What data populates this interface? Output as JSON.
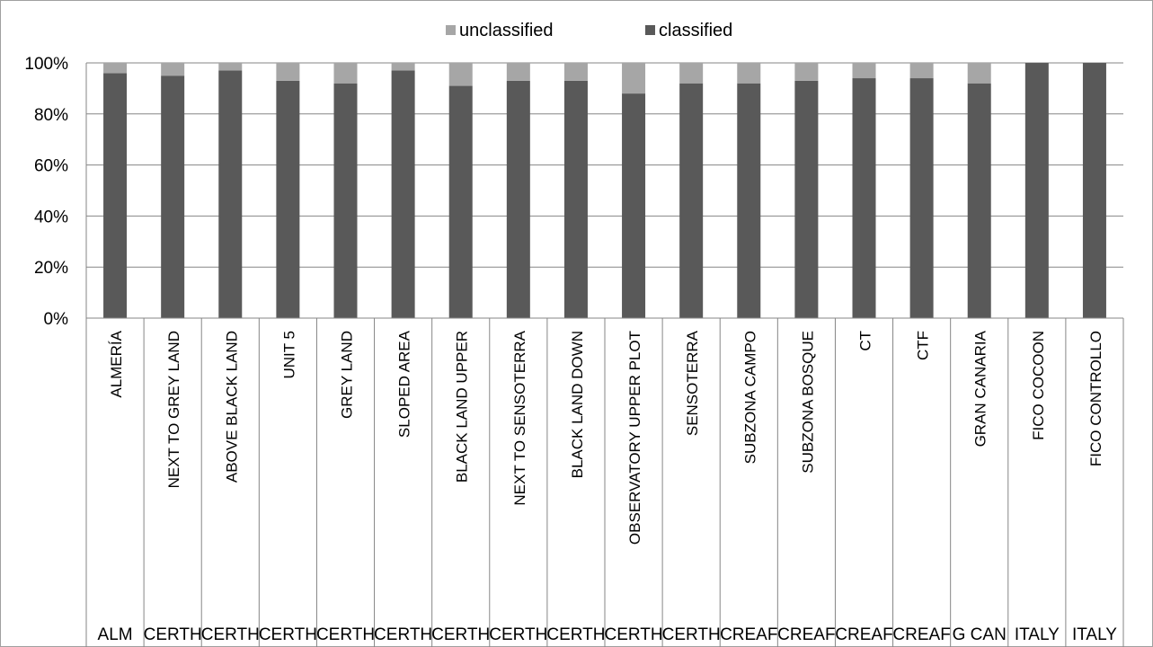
{
  "chart_data": {
    "type": "bar",
    "stacked": true,
    "percent_stacked": true,
    "categories": [
      "ALMERÍA",
      "NEXT TO GREY LAND",
      "ABOVE BLACK LAND",
      "UNIT 5",
      "GREY LAND",
      "SLOPED AREA",
      "BLACK LAND UPPER",
      "NEXT TO SENSOTERRA",
      "BLACK LAND DOWN",
      "OBSERVATORY UPPER PLOT",
      "SENSOTERRA",
      "SUBZONA CAMPO",
      "SUBZONA BOSQUE",
      "CT",
      "CTF",
      "GRAN CANARIA",
      "FICO COCOON",
      "FICO CONTROLLO"
    ],
    "groups": [
      "ALM",
      "CERTH",
      "CERTH",
      "CERTH",
      "CERTH",
      "CERTH",
      "CERTH",
      "CERTH",
      "CERTH",
      "CERTH",
      "CERTH",
      "CREAF",
      "CREAF",
      "CREAF",
      "CREAF",
      "G CAN",
      "ITALY",
      "ITALY"
    ],
    "series": [
      {
        "name": "classified",
        "color": "#595959",
        "values": [
          96,
          95,
          97,
          93,
          92,
          97,
          91,
          93,
          93,
          88,
          92,
          92,
          93,
          94,
          94,
          92,
          100,
          100
        ]
      },
      {
        "name": "unclassified",
        "color": "#a6a6a6",
        "values": [
          4,
          5,
          3,
          7,
          8,
          3,
          9,
          7,
          7,
          12,
          8,
          8,
          7,
          6,
          6,
          8,
          0,
          0
        ]
      }
    ],
    "legend_order": [
      "unclassified",
      "classified"
    ],
    "legend_position": "top",
    "y_ticks": [
      "0%",
      "20%",
      "40%",
      "60%",
      "80%",
      "100%"
    ],
    "ylim": [
      0,
      100
    ],
    "grid": true,
    "colors": {
      "gridline": "#868686",
      "border": "#a0a0a0",
      "axis": "#868686"
    }
  }
}
